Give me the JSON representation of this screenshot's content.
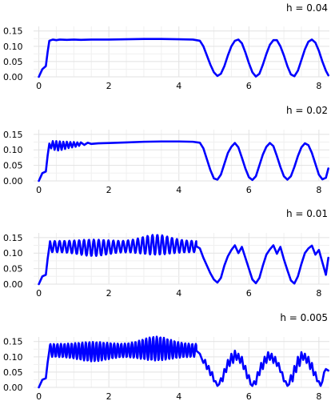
{
  "chart_data": [
    {
      "type": "line",
      "title": "h = 0.04",
      "xlabel": "",
      "ylabel": "",
      "xlim": [
        -0.15,
        8.3
      ],
      "ylim": [
        0,
        0.165
      ],
      "xticks": [
        0,
        2,
        4,
        6,
        8
      ],
      "yticks": [
        "0.00",
        "0.05",
        "0.10",
        "0.15"
      ],
      "grid": true,
      "series": [
        {
          "color": "#0000ff",
          "x": [
            0,
            0.1,
            0.2,
            0.25,
            0.3,
            0.4,
            0.5,
            0.6,
            0.8,
            1.0,
            1.2,
            1.5,
            2.0,
            2.5,
            3.0,
            3.5,
            4.0,
            4.4,
            4.6,
            4.7,
            4.8,
            4.9,
            5.0,
            5.1,
            5.2,
            5.3,
            5.4,
            5.5,
            5.6,
            5.7,
            5.8,
            5.9,
            6.0,
            6.1,
            6.2,
            6.3,
            6.4,
            6.5,
            6.6,
            6.7,
            6.8,
            6.9,
            7.0,
            7.1,
            7.2,
            7.3,
            7.4,
            7.5,
            7.6,
            7.7,
            7.8,
            7.9,
            8.0,
            8.1,
            8.2,
            8.27
          ],
          "y": [
            0,
            0.025,
            0.035,
            0.08,
            0.118,
            0.122,
            0.12,
            0.122,
            0.121,
            0.122,
            0.121,
            0.122,
            0.122,
            0.123,
            0.124,
            0.124,
            0.123,
            0.122,
            0.118,
            0.1,
            0.07,
            0.04,
            0.015,
            0.003,
            0.01,
            0.035,
            0.07,
            0.1,
            0.118,
            0.122,
            0.11,
            0.08,
            0.045,
            0.015,
            0.001,
            0.01,
            0.04,
            0.075,
            0.105,
            0.12,
            0.12,
            0.1,
            0.07,
            0.035,
            0.008,
            0.002,
            0.02,
            0.055,
            0.09,
            0.115,
            0.122,
            0.112,
            0.085,
            0.05,
            0.02,
            0.005
          ]
        }
      ]
    },
    {
      "type": "line",
      "title": "h = 0.02",
      "xlabel": "",
      "ylabel": "",
      "xlim": [
        -0.15,
        8.3
      ],
      "ylim": [
        0,
        0.165
      ],
      "xticks": [
        0,
        2,
        4,
        6,
        8
      ],
      "yticks": [
        "0.00",
        "0.05",
        "0.10",
        "0.15"
      ],
      "grid": true,
      "series": [
        {
          "color": "#0000ff",
          "x": [
            0,
            0.1,
            0.2,
            0.25,
            0.3,
            0.35,
            0.4,
            0.45,
            0.5,
            0.55,
            0.6,
            0.65,
            0.7,
            0.75,
            0.8,
            0.85,
            0.9,
            0.95,
            1.0,
            1.05,
            1.1,
            1.15,
            1.2,
            1.3,
            1.4,
            1.5,
            1.7,
            2.0,
            2.5,
            3.0,
            3.5,
            4.0,
            4.4,
            4.6,
            4.7,
            4.8,
            4.9,
            5.0,
            5.1,
            5.2,
            5.3,
            5.4,
            5.5,
            5.6,
            5.7,
            5.8,
            5.9,
            6.0,
            6.1,
            6.2,
            6.3,
            6.4,
            6.5,
            6.6,
            6.7,
            6.8,
            6.9,
            7.0,
            7.1,
            7.2,
            7.3,
            7.4,
            7.5,
            7.6,
            7.7,
            7.8,
            7.9,
            8.0,
            8.1,
            8.2,
            8.27
          ],
          "y": [
            0,
            0.025,
            0.03,
            0.08,
            0.12,
            0.105,
            0.128,
            0.1,
            0.128,
            0.098,
            0.127,
            0.1,
            0.126,
            0.103,
            0.126,
            0.106,
            0.125,
            0.108,
            0.125,
            0.11,
            0.124,
            0.113,
            0.124,
            0.116,
            0.123,
            0.119,
            0.121,
            0.122,
            0.124,
            0.126,
            0.127,
            0.127,
            0.126,
            0.123,
            0.105,
            0.07,
            0.035,
            0.008,
            0.004,
            0.02,
            0.055,
            0.09,
            0.11,
            0.122,
            0.108,
            0.075,
            0.04,
            0.012,
            0.003,
            0.015,
            0.05,
            0.085,
            0.11,
            0.122,
            0.112,
            0.08,
            0.045,
            0.015,
            0.004,
            0.015,
            0.045,
            0.08,
            0.108,
            0.121,
            0.115,
            0.09,
            0.055,
            0.02,
            0.005,
            0.01,
            0.04
          ]
        }
      ]
    },
    {
      "type": "line",
      "title": "h = 0.01",
      "xlabel": "",
      "ylabel": "",
      "xlim": [
        -0.15,
        8.3
      ],
      "ylim": [
        0,
        0.165
      ],
      "xticks": [
        0,
        2,
        4,
        6,
        8
      ],
      "yticks": [
        "0.00",
        "0.05",
        "0.10",
        "0.15"
      ],
      "grid": true,
      "series": [
        {
          "color": "#0000ff",
          "x": [
            0,
            0.1,
            0.2,
            0.25,
            0.3,
            4.5,
            4.6,
            4.7,
            4.8,
            4.9,
            5.0,
            5.1,
            5.2,
            5.3,
            5.4,
            5.5,
            5.6,
            5.7,
            5.8,
            5.9,
            6.0,
            6.1,
            6.2,
            6.3,
            6.4,
            6.5,
            6.6,
            6.7,
            6.8,
            6.9,
            7.0,
            7.1,
            7.2,
            7.3,
            7.4,
            7.5,
            7.6,
            7.7,
            7.8,
            7.9,
            8.0,
            8.1,
            8.2,
            8.27
          ],
          "y": [
            0,
            0.025,
            0.03,
            0.08,
            0.12,
            0.122,
            0.115,
            0.085,
            0.06,
            0.035,
            0.015,
            0.005,
            0.02,
            0.06,
            0.09,
            0.11,
            0.125,
            0.1,
            0.12,
            0.085,
            0.05,
            0.015,
            0.003,
            0.02,
            0.06,
            0.095,
            0.112,
            0.125,
            0.098,
            0.12,
            0.08,
            0.045,
            0.012,
            0.002,
            0.025,
            0.065,
            0.1,
            0.115,
            0.124,
            0.095,
            0.11,
            0.07,
            0.03,
            0.085
          ]
        }
      ]
    },
    {
      "type": "line",
      "title": "h = 0.005",
      "xlabel": "",
      "ylabel": "",
      "xlim": [
        -0.15,
        8.3
      ],
      "ylim": [
        0,
        0.165
      ],
      "xticks": [
        0,
        2,
        4,
        6,
        8
      ],
      "yticks": [
        "0.00",
        "0.05",
        "0.10",
        "0.15"
      ],
      "grid": true,
      "series": [
        {
          "color": "#0000ff",
          "x": [
            0,
            0.1,
            0.2,
            0.25,
            0.3,
            4.5,
            4.6,
            4.7,
            4.75,
            4.8,
            4.85,
            4.9,
            4.95,
            5.0,
            5.05,
            5.1,
            5.15,
            5.2,
            5.25,
            5.3,
            5.35,
            5.4,
            5.45,
            5.5,
            5.55,
            5.6,
            5.65,
            5.7,
            5.75,
            5.8,
            5.85,
            5.9,
            5.95,
            6.0,
            6.05,
            6.1,
            6.15,
            6.2,
            6.25,
            6.3,
            6.35,
            6.4,
            6.45,
            6.5,
            6.55,
            6.6,
            6.65,
            6.7,
            6.75,
            6.8,
            6.85,
            6.9,
            6.95,
            7.0,
            7.05,
            7.1,
            7.15,
            7.2,
            7.25,
            7.3,
            7.35,
            7.4,
            7.45,
            7.5,
            7.55,
            7.6,
            7.65,
            7.7,
            7.75,
            7.8,
            7.85,
            7.9,
            7.95,
            8.0,
            8.05,
            8.1,
            8.15,
            8.2,
            8.27
          ],
          "y": [
            0,
            0.025,
            0.03,
            0.08,
            0.12,
            0.12,
            0.11,
            0.08,
            0.09,
            0.06,
            0.07,
            0.04,
            0.05,
            0.02,
            0.02,
            0.005,
            0.01,
            0.03,
            0.02,
            0.06,
            0.05,
            0.09,
            0.07,
            0.11,
            0.08,
            0.12,
            0.09,
            0.11,
            0.08,
            0.1,
            0.06,
            0.07,
            0.03,
            0.04,
            0.01,
            0.005,
            0.02,
            0.01,
            0.05,
            0.04,
            0.08,
            0.06,
            0.1,
            0.08,
            0.115,
            0.09,
            0.11,
            0.08,
            0.1,
            0.07,
            0.08,
            0.05,
            0.05,
            0.02,
            0.02,
            0.005,
            0.01,
            0.04,
            0.02,
            0.07,
            0.05,
            0.1,
            0.07,
            0.115,
            0.09,
            0.11,
            0.08,
            0.1,
            0.06,
            0.08,
            0.04,
            0.05,
            0.02,
            0.02,
            0.005,
            0.02,
            0.05,
            0.06,
            0.055
          ]
        }
      ]
    }
  ]
}
